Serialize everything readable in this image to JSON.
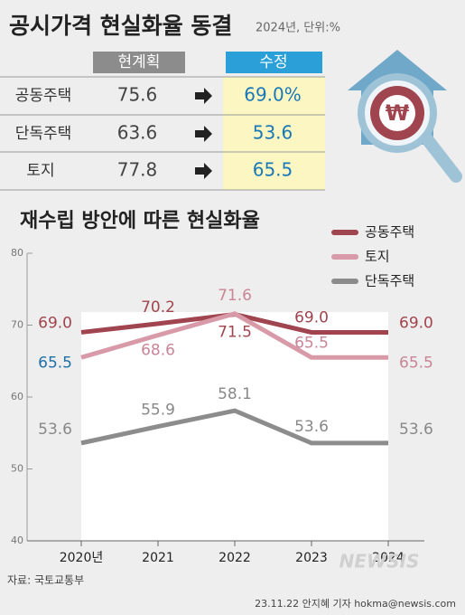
{
  "header": {
    "title": "공시가격 현실화율 동결",
    "subtitle": "2024년, 단위:%"
  },
  "table": {
    "headers": [
      "현계획",
      "수정"
    ],
    "rows": [
      [
        "공동주택",
        "75.6",
        "69.0%"
      ],
      [
        "단독주택",
        "63.6",
        "53.6"
      ],
      [
        "토지",
        "77.8",
        "65.5"
      ]
    ]
  },
  "icon_symbol": "₩",
  "chart_data": {
    "type": "line",
    "title": "재수립 방안에 따른 현실화율",
    "categories": [
      "2020년",
      "2021",
      "2022",
      "2023",
      "2024"
    ],
    "series": [
      {
        "name": "공동주택",
        "color": "#a0454f",
        "values": [
          69.0,
          70.2,
          71.5,
          69.0,
          69.0
        ],
        "value_labels": [
          "69.0",
          "70.2",
          "71.5",
          "69.0",
          "69.0"
        ]
      },
      {
        "name": "토지",
        "color": "#d89aa8",
        "values": [
          65.5,
          68.6,
          71.6,
          65.5,
          65.5
        ],
        "value_labels": [
          "65.5",
          "68.6",
          "71.6",
          "65.5",
          "65.5"
        ]
      },
      {
        "name": "단독주택",
        "color": "#8c8c8c",
        "values": [
          53.6,
          55.9,
          58.1,
          53.6,
          53.6
        ],
        "value_labels": [
          "53.6",
          "55.9",
          "58.1",
          "53.6",
          "53.6"
        ]
      }
    ],
    "ylim": [
      40,
      80
    ],
    "yticks": [
      40,
      50,
      60,
      70,
      80
    ]
  },
  "footer": {
    "source": "자료: 국토교통부",
    "watermark": "NEWSIS",
    "credit": "23.11.22 안지혜 기자 hokma@newsis.com"
  }
}
